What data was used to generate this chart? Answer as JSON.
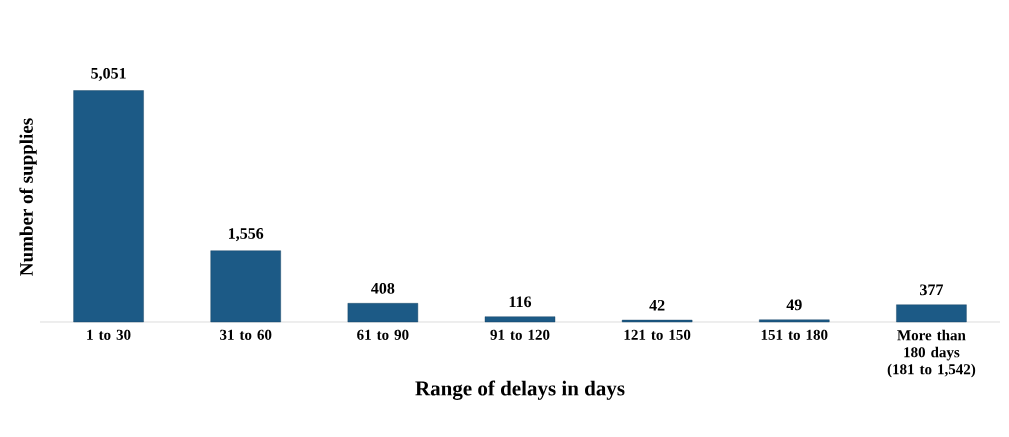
{
  "chart_data": {
    "type": "bar",
    "xlabel": "Range of delays in days",
    "ylabel": "Number of supplies",
    "categories": [
      "1 to 30",
      "31 to 60",
      "61 to 90",
      "91 to 120",
      "121 to 150",
      "151 to 180",
      "More than 180 days (181 to 1,542)"
    ],
    "values": [
      5051,
      1556,
      408,
      116,
      42,
      49,
      377
    ],
    "value_labels": [
      "5,051",
      "1,556",
      "408",
      "116",
      "42",
      "49",
      "377"
    ],
    "color": "#1c5a86"
  }
}
